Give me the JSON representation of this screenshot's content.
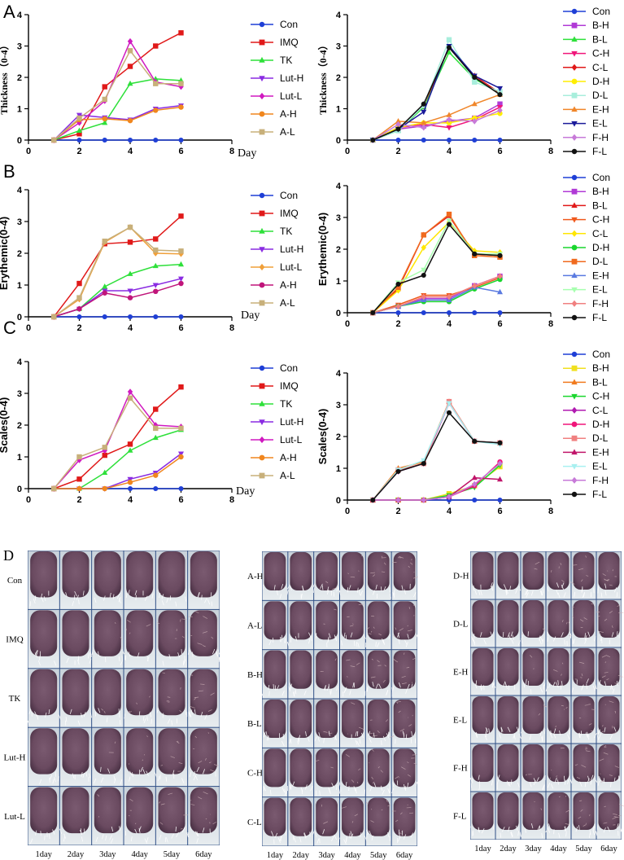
{
  "panel_letters": [
    "A",
    "B",
    "C",
    "D"
  ],
  "colors": {
    "left": [
      "#1f3fd6",
      "#e01919",
      "#2ee03a",
      "#8a2be2",
      "#d01ac0",
      "#f0861e",
      "#c8b07a"
    ],
    "right": [
      "#1f3fd6",
      "#b03ad6",
      "#2ee03a",
      "#f0157a",
      "#e01919",
      "#ffee00",
      "#a8eedc",
      "#f0862a",
      "#1a1a9a",
      "#c77ad8",
      "#111111"
    ],
    "leftB": [
      "#1f3fd6",
      "#e01919",
      "#2ee03a",
      "#8a2be2",
      "#f0a03a",
      "#c0157a",
      "#c8b07a"
    ],
    "rightB": [
      "#1f3fd6",
      "#b03ad6",
      "#e01919",
      "#f05a1e",
      "#ffe600",
      "#1ad62e",
      "#f06a1e",
      "#5a7ae0",
      "#a8ffb0",
      "#f08080",
      "#111111"
    ],
    "rightC": [
      "#1f3fd6",
      "#f0e01e",
      "#f07a1e",
      "#1ad62e",
      "#b01ab0",
      "#f0157a",
      "#f08080",
      "#c0156a",
      "#a8f0f0",
      "#c77ad8",
      "#111111"
    ]
  },
  "chart_data": [
    {
      "type": "line",
      "panel": "A-left",
      "ylabel": "Thickness（0-4）",
      "xlabel": "Day",
      "xlim": [
        0,
        8
      ],
      "ylim": [
        0,
        4
      ],
      "xticks": [
        "0",
        "2",
        "4",
        "6",
        "8"
      ],
      "yticks": [
        "0",
        "1",
        "2",
        "3",
        "4"
      ],
      "x": [
        1,
        2,
        3,
        4,
        5,
        6
      ],
      "series": [
        {
          "name": "Con",
          "values": [
            0,
            0,
            0,
            0,
            0,
            0
          ]
        },
        {
          "name": "IMQ",
          "values": [
            0,
            0.2,
            1.7,
            2.35,
            3.0,
            3.42
          ]
        },
        {
          "name": "TK",
          "values": [
            0,
            0.3,
            0.55,
            1.8,
            1.95,
            1.9
          ]
        },
        {
          "name": "Lut-H",
          "values": [
            0,
            0.8,
            0.72,
            0.65,
            1.0,
            1.1
          ]
        },
        {
          "name": "Lut-L",
          "values": [
            0,
            0.55,
            1.25,
            3.15,
            1.85,
            1.7
          ]
        },
        {
          "name": "A-H",
          "values": [
            0,
            0.65,
            0.68,
            0.62,
            0.95,
            1.05
          ]
        },
        {
          "name": "A-L",
          "values": [
            0,
            0.7,
            1.3,
            2.85,
            1.8,
            1.8
          ]
        }
      ]
    },
    {
      "type": "line",
      "panel": "A-right",
      "ylabel": "Thickness（0-4）",
      "xlim": [
        0,
        8
      ],
      "ylim": [
        0,
        4
      ],
      "xticks": [
        "0",
        "2",
        "4",
        "6",
        "8"
      ],
      "yticks": [
        "0",
        "1",
        "2",
        "3",
        "4"
      ],
      "x": [
        1,
        2,
        3,
        4,
        5,
        6
      ],
      "series": [
        {
          "name": "Con",
          "values": [
            0,
            0,
            0,
            0,
            0,
            0
          ]
        },
        {
          "name": "B-H",
          "values": [
            0,
            0.35,
            0.45,
            0.6,
            0.7,
            1.15
          ]
        },
        {
          "name": "B-L",
          "values": [
            0,
            0.3,
            1.05,
            2.8,
            1.95,
            1.5
          ]
        },
        {
          "name": "C-H",
          "values": [
            0,
            0.4,
            0.5,
            0.4,
            0.65,
            1.05
          ]
        },
        {
          "name": "C-L",
          "values": [
            0,
            0.35,
            1.1,
            2.95,
            2.05,
            1.5
          ]
        },
        {
          "name": "D-H",
          "values": [
            0,
            0.4,
            0.55,
            0.55,
            0.7,
            0.85
          ]
        },
        {
          "name": "D-L",
          "values": [
            0,
            0.3,
            1.1,
            3.2,
            1.85,
            1.55
          ]
        },
        {
          "name": "E-H",
          "values": [
            0,
            0.6,
            0.55,
            0.8,
            1.15,
            1.45
          ]
        },
        {
          "name": "E-L",
          "values": [
            0,
            0.35,
            0.9,
            3.0,
            2.05,
            1.65
          ]
        },
        {
          "name": "F-H",
          "values": [
            0,
            0.5,
            0.4,
            0.65,
            0.6,
            0.95
          ]
        },
        {
          "name": "F-L",
          "values": [
            0,
            0.35,
            1.15,
            2.95,
            2.0,
            1.45
          ]
        }
      ]
    },
    {
      "type": "line",
      "panel": "B-left",
      "ylabel": "Erythemic(0-4)",
      "xlabel": "Day",
      "xlim": [
        0,
        8
      ],
      "ylim": [
        0,
        4
      ],
      "xticks": [
        "0",
        "2",
        "4",
        "6",
        "8"
      ],
      "yticks": [
        "0",
        "1",
        "2",
        "3",
        "4"
      ],
      "x": [
        1,
        2,
        3,
        4,
        5,
        6
      ],
      "series": [
        {
          "name": "Con",
          "values": [
            0,
            0,
            0,
            0,
            0,
            0
          ]
        },
        {
          "name": "IMQ",
          "values": [
            0,
            1.05,
            2.3,
            2.35,
            2.45,
            3.17
          ]
        },
        {
          "name": "TK",
          "values": [
            0,
            0.25,
            0.95,
            1.35,
            1.6,
            1.65
          ]
        },
        {
          "name": "Lut-H",
          "values": [
            0,
            0.25,
            0.82,
            0.82,
            1.0,
            1.2
          ]
        },
        {
          "name": "Lut-L",
          "values": [
            0,
            0.55,
            2.35,
            2.82,
            2.0,
            1.98
          ]
        },
        {
          "name": "A-H",
          "values": [
            0,
            0.25,
            0.75,
            0.6,
            0.8,
            1.05
          ]
        },
        {
          "name": "A-L",
          "values": [
            0,
            0.6,
            2.38,
            2.82,
            2.1,
            2.07
          ]
        }
      ]
    },
    {
      "type": "line",
      "panel": "B-right",
      "ylabel": "Erythemic(0-4)",
      "xlim": [
        0,
        8
      ],
      "ylim": [
        0,
        4
      ],
      "xticks": [
        "0",
        "2",
        "4",
        "6",
        "8"
      ],
      "yticks": [
        "0",
        "1",
        "2",
        "3",
        "4"
      ],
      "x": [
        1,
        2,
        3,
        4,
        5,
        6
      ],
      "series": [
        {
          "name": "Con",
          "values": [
            0,
            0,
            0,
            0,
            0,
            0
          ]
        },
        {
          "name": "B-H",
          "values": [
            0,
            0.2,
            0.45,
            0.45,
            0.85,
            1.15
          ]
        },
        {
          "name": "B-L",
          "values": [
            0,
            0.75,
            2.45,
            3.05,
            1.85,
            1.8
          ]
        },
        {
          "name": "C-H",
          "values": [
            0,
            0.25,
            0.55,
            0.55,
            0.8,
            1.1
          ]
        },
        {
          "name": "C-L",
          "values": [
            0,
            0.7,
            2.05,
            2.85,
            1.95,
            1.9
          ]
        },
        {
          "name": "D-H",
          "values": [
            0,
            0.2,
            0.35,
            0.35,
            0.75,
            1.05
          ]
        },
        {
          "name": "D-L",
          "values": [
            0,
            0.8,
            2.45,
            3.1,
            1.8,
            1.75
          ]
        },
        {
          "name": "E-H",
          "values": [
            0,
            0.2,
            0.4,
            0.4,
            0.8,
            0.65
          ]
        },
        {
          "name": "E-L",
          "values": [
            0,
            0.95,
            1.35,
            2.9,
            1.85,
            1.85
          ]
        },
        {
          "name": "F-H",
          "values": [
            0,
            0.2,
            0.5,
            0.5,
            0.85,
            1.15
          ]
        },
        {
          "name": "F-L",
          "values": [
            0,
            0.9,
            1.18,
            2.78,
            1.85,
            1.8
          ]
        }
      ]
    },
    {
      "type": "line",
      "panel": "C-left",
      "ylabel": "Scales(0-4)",
      "xlabel": "Day",
      "xlim": [
        0,
        8
      ],
      "ylim": [
        0,
        4
      ],
      "xticks": [
        "0",
        "2",
        "4",
        "6",
        "8"
      ],
      "yticks": [
        "0",
        "1",
        "2",
        "3",
        "4"
      ],
      "x": [
        1,
        2,
        3,
        4,
        5,
        6
      ],
      "series": [
        {
          "name": "Con",
          "values": [
            0,
            0,
            0,
            0,
            0,
            0
          ]
        },
        {
          "name": "IMQ",
          "values": [
            0,
            0.3,
            1.05,
            1.4,
            2.5,
            3.2
          ]
        },
        {
          "name": "TK",
          "values": [
            0,
            0,
            0.5,
            1.2,
            1.6,
            1.85
          ]
        },
        {
          "name": "Lut-H",
          "values": [
            0,
            0,
            0,
            0.3,
            0.5,
            1.1
          ]
        },
        {
          "name": "Lut-L",
          "values": [
            0,
            0.9,
            1.2,
            3.05,
            2.0,
            1.95
          ]
        },
        {
          "name": "A-H",
          "values": [
            0,
            0,
            0,
            0.2,
            0.42,
            1.0
          ]
        },
        {
          "name": "A-L",
          "values": [
            0,
            1.0,
            1.3,
            2.85,
            1.9,
            1.9
          ]
        }
      ]
    },
    {
      "type": "line",
      "panel": "C-right",
      "ylabel": "Scales(0-4)",
      "xlim": [
        0,
        8
      ],
      "ylim": [
        0,
        4
      ],
      "xticks": [
        "0",
        "2",
        "4",
        "6",
        "8"
      ],
      "yticks": [
        "0",
        "1",
        "2",
        "3",
        "4"
      ],
      "x": [
        1,
        2,
        3,
        4,
        5,
        6
      ],
      "series": [
        {
          "name": "Con",
          "values": [
            0,
            0,
            0,
            0,
            0,
            0
          ]
        },
        {
          "name": "B-H",
          "values": [
            0,
            0,
            0,
            0.2,
            0.45,
            1.05
          ]
        },
        {
          "name": "B-L",
          "values": [
            0,
            1.0,
            1.2,
            3.1,
            1.85,
            1.8
          ]
        },
        {
          "name": "C-H",
          "values": [
            0,
            0,
            0,
            0.15,
            0.4,
            1.1
          ]
        },
        {
          "name": "C-L",
          "values": [
            0,
            0.9,
            1.15,
            3.05,
            1.85,
            1.8
          ]
        },
        {
          "name": "D-H",
          "values": [
            0,
            0,
            0,
            0.1,
            0.45,
            1.2
          ]
        },
        {
          "name": "D-L",
          "values": [
            0,
            0.95,
            1.15,
            3.1,
            1.85,
            1.8
          ]
        },
        {
          "name": "E-H",
          "values": [
            0,
            0,
            0,
            0.1,
            0.7,
            0.65
          ]
        },
        {
          "name": "E-L",
          "values": [
            0,
            0.95,
            1.25,
            3.05,
            1.85,
            1.75
          ]
        },
        {
          "name": "F-H",
          "values": [
            0,
            0,
            0,
            0.1,
            0.5,
            1.15
          ]
        },
        {
          "name": "F-L",
          "values": [
            0,
            0.9,
            1.15,
            2.75,
            1.85,
            1.8
          ]
        }
      ]
    }
  ],
  "photo_panel": {
    "groups": [
      {
        "rows": [
          "Con",
          "IMQ",
          "TK",
          "Lut-H",
          "Lut-L"
        ]
      },
      {
        "rows": [
          "A-H",
          "A-L",
          "B-H",
          "B-L",
          "C-H",
          "C-L"
        ]
      },
      {
        "rows": [
          "D-H",
          "D-L",
          "E-H",
          "E-L",
          "F-H",
          "F-L"
        ]
      }
    ],
    "columns": [
      "1day",
      "2day",
      "3day",
      "4day",
      "5day",
      "6day"
    ]
  }
}
